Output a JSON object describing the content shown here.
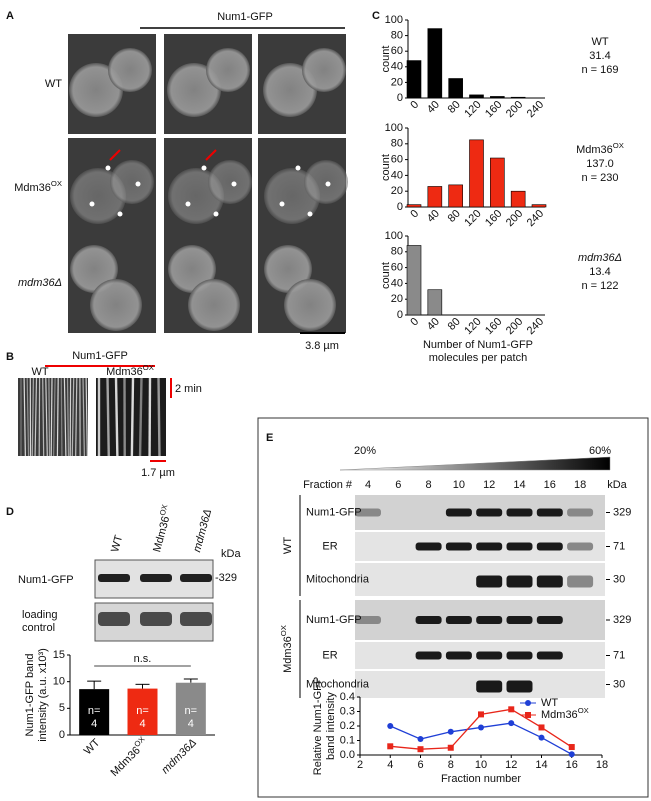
{
  "panel_labels": [
    "A",
    "B",
    "C",
    "D",
    "E"
  ],
  "panel_a": {
    "title": "Num1-GFP",
    "rows": [
      {
        "text": "WT"
      },
      {
        "text": "Mdm36",
        "sup": "OX"
      },
      {
        "text": "mdm36Δ",
        "italic": true
      }
    ],
    "scale_bar": "3.8 µm"
  },
  "panel_b": {
    "title": "Num1-GFP",
    "columns": [
      {
        "text": "WT"
      },
      {
        "text": "Mdm36",
        "sup": "OX"
      }
    ],
    "time_bar": "2 min",
    "scale_bar": "1.7 µm"
  },
  "panel_d": {
    "lanes": [
      {
        "text": "WT"
      },
      {
        "text": "Mdm36",
        "sup": "OX"
      },
      {
        "text": "mdm36Δ",
        "italic": true
      }
    ],
    "kda": "kDa",
    "blot_label": "Num1-GFP",
    "marker": "-329",
    "control_label": [
      "loading",
      "control"
    ]
  },
  "panel_e": {
    "gradient": [
      "20%",
      "60%"
    ],
    "fraction_label": "Fraction #",
    "fractions": [
      4,
      6,
      8,
      10,
      12,
      14,
      16,
      18
    ],
    "kda": "kDa",
    "groups": [
      {
        "name": {
          "text": "WT"
        },
        "blots": [
          {
            "label": "Num1-GFP",
            "marker": "329"
          },
          {
            "label": "ER",
            "marker": "71"
          },
          {
            "label": "Mitochondria",
            "marker": "30"
          }
        ]
      },
      {
        "name": {
          "text": "Mdm36",
          "sup": "OX"
        },
        "blots": [
          {
            "label": "Num1-GFP",
            "marker": "329"
          },
          {
            "label": "ER",
            "marker": "71"
          },
          {
            "label": "Mitochondria",
            "marker": "30"
          }
        ]
      }
    ]
  },
  "chart_data": [
    {
      "type": "bar",
      "label": {
        "text": "WT"
      },
      "annotations": [
        "31.4",
        "n = 169"
      ],
      "ylabel": "count",
      "color": "#000000",
      "categories": [
        "0",
        "40",
        "80",
        "120",
        "160",
        "200",
        "240"
      ],
      "values": [
        48,
        89,
        25,
        4,
        2,
        1,
        0
      ],
      "ylim": [
        0,
        100
      ],
      "yticks": [
        0,
        20,
        40,
        60,
        80,
        100
      ]
    },
    {
      "type": "bar",
      "label": {
        "text": "Mdm36",
        "sup": "OX"
      },
      "annotations": [
        "137.0",
        "n = 230"
      ],
      "ylabel": "count",
      "color": "#ee2a12",
      "categories": [
        "0",
        "40",
        "80",
        "120",
        "160",
        "200",
        "240"
      ],
      "values": [
        3,
        26,
        28,
        85,
        62,
        20,
        3
      ],
      "ylim": [
        0,
        100
      ],
      "yticks": [
        0,
        20,
        40,
        60,
        80,
        100
      ]
    },
    {
      "type": "bar",
      "label": {
        "text": "mdm36Δ",
        "italic": true
      },
      "annotations": [
        "13.4",
        "n = 122"
      ],
      "ylabel": "count",
      "color": "#8a8a8a",
      "categories": [
        "0",
        "40",
        "80",
        "120",
        "160",
        "200",
        "240"
      ],
      "values": [
        88,
        32,
        0,
        0,
        0,
        0,
        0
      ],
      "ylim": [
        0,
        100
      ],
      "yticks": [
        0,
        20,
        40,
        60,
        80,
        100
      ],
      "xlabel": [
        "Number of Num1-GFP",
        "molecules per patch"
      ]
    },
    {
      "type": "errorbar",
      "categories": [
        {
          "text": "WT"
        },
        {
          "text": "Mdm36",
          "sup": "OX"
        },
        {
          "text": "mdm36Δ",
          "italic": true
        }
      ],
      "values": [
        8.6,
        8.7,
        9.8
      ],
      "errors": [
        1.5,
        0.8,
        0.7
      ],
      "colors": [
        "#000000",
        "#ee2a12",
        "#8a8a8a"
      ],
      "bar_labels": [
        [
          "n=",
          "4"
        ],
        [
          "n=",
          "4"
        ],
        [
          "n=",
          "4"
        ]
      ],
      "significance": "n.s.",
      "ylabel": [
        "Num1-GFP band",
        "intensity (a.u. x10³)"
      ],
      "ylim": [
        0,
        15
      ],
      "yticks": [
        0,
        5,
        10,
        15
      ]
    },
    {
      "type": "line",
      "x": [
        4,
        6,
        8,
        10,
        12,
        14,
        16
      ],
      "series": [
        {
          "name": {
            "text": "WT"
          },
          "color": "#1f3fd6",
          "marker": "circle",
          "values": [
            0.2,
            0.11,
            0.16,
            0.19,
            0.22,
            0.12,
            0.005
          ]
        },
        {
          "name": {
            "text": "Mdm36",
            "sup": "OX"
          },
          "color": "#e8261a",
          "marker": "square",
          "values": [
            0.06,
            0.04,
            0.05,
            0.28,
            0.315,
            0.19,
            0.055
          ]
        }
      ],
      "xlim": [
        2,
        18
      ],
      "xticks": [
        2,
        4,
        6,
        8,
        10,
        12,
        14,
        16,
        18
      ],
      "ylim": [
        0,
        0.4
      ],
      "yticks": [
        {
          "value": 0,
          "label": "0.0"
        },
        0.1,
        0.2,
        0.3,
        0.4
      ],
      "xlabel": "Fraction number",
      "ylabel": [
        "Relative Num1-GFP",
        "band intensity"
      ],
      "legend": "upper right"
    }
  ]
}
